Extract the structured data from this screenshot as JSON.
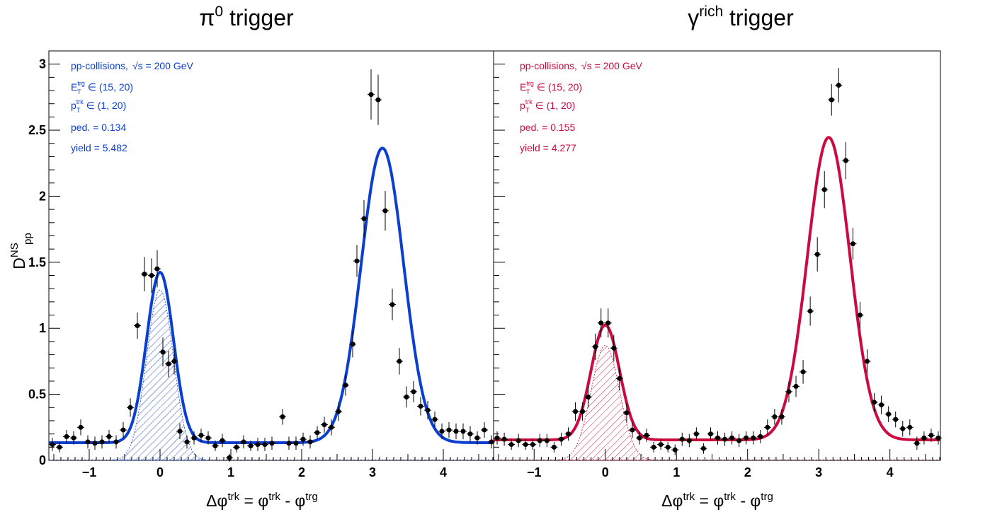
{
  "chart_data": [
    {
      "type": "scatter",
      "panel": "left",
      "title_main": "π",
      "title_sup": "0",
      "title_rest": " trigger",
      "color": "#0a3fd0",
      "xlabel_parts": [
        "Δφ",
        "trk",
        " = φ",
        "trk",
        " - φ",
        "trg"
      ],
      "ylabel_main": "D",
      "ylabel_sup": "NS",
      "ylabel_sub": "pp",
      "xlim": [
        -1.57,
        4.71
      ],
      "ylim": [
        0,
        3.1
      ],
      "xticks": [
        -1,
        0,
        1,
        2,
        3,
        4
      ],
      "xtick_labels": [
        "−1",
        "0",
        "1",
        "2",
        "3",
        "4"
      ],
      "yticks": [
        0,
        0.5,
        1,
        1.5,
        2,
        2.5,
        3
      ],
      "ytick_labels": [
        "0",
        "0.5",
        "1",
        "1.5",
        "2",
        "2.5",
        "3"
      ],
      "show_ytick_labels": true,
      "annotations": {
        "collisions": "pp-collisions,",
        "sqrt_s": "√s",
        "energy": " = 200 GeV",
        "et_symbol": "E",
        "et_sup": "trg",
        "et_sub": "T",
        "et_range": " ∈ (15, 20)",
        "pt_symbol": "p",
        "pt_sup": "trk",
        "pt_sub": "T",
        "pt_range": " ∈ (1, 20)",
        "pedestal": "ped. = 0.134",
        "yield": "yield = 5.482"
      },
      "fit": {
        "pedestal": 0.134,
        "near_amplitude": 1.29,
        "near_mean": 0.0,
        "near_sigma": 0.19,
        "away_amplitude": 2.23,
        "away_mean": 3.14,
        "away_sigma": 0.3
      },
      "series": [
        {
          "style": "points",
          "x": [
            -1.52,
            -1.42,
            -1.32,
            -1.22,
            -1.12,
            -1.02,
            -0.92,
            -0.82,
            -0.72,
            -0.62,
            -0.52,
            -0.42,
            -0.32,
            -0.22,
            -0.12,
            -0.04,
            0.04,
            0.12,
            0.2,
            0.28,
            0.38,
            0.48,
            0.58,
            0.68,
            0.78,
            0.88,
            0.98,
            1.08,
            1.18,
            1.28,
            1.38,
            1.48,
            1.58,
            1.73,
            1.82,
            1.92,
            2.02,
            2.12,
            2.22,
            2.32,
            2.42,
            2.52,
            2.62,
            2.72,
            2.78,
            2.88,
            2.98,
            3.08,
            3.18,
            3.28,
            3.38,
            3.48,
            3.58,
            3.68,
            3.78,
            3.88,
            3.98,
            4.08,
            4.18,
            4.28,
            4.38,
            4.48,
            4.58,
            4.68
          ],
          "y": [
            0.12,
            0.1,
            0.18,
            0.17,
            0.25,
            0.14,
            0.13,
            0.14,
            0.18,
            0.14,
            0.23,
            0.4,
            1.02,
            1.41,
            1.4,
            1.45,
            0.82,
            0.73,
            0.75,
            0.22,
            0.14,
            0.17,
            0.19,
            0.17,
            0.11,
            0.15,
            0.02,
            0.1,
            0.14,
            0.11,
            0.12,
            0.12,
            0.13,
            0.33,
            0.13,
            0.13,
            0.16,
            0.14,
            0.21,
            0.27,
            0.25,
            0.37,
            0.57,
            0.88,
            1.51,
            1.83,
            2.77,
            2.73,
            1.89,
            1.18,
            0.75,
            0.48,
            0.52,
            0.41,
            0.38,
            0.31,
            0.22,
            0.23,
            0.22,
            0.22,
            0.2,
            0.17,
            0.23,
            0.14
          ],
          "yerr": [
            0.05,
            0.04,
            0.05,
            0.05,
            0.06,
            0.05,
            0.05,
            0.05,
            0.05,
            0.05,
            0.06,
            0.07,
            0.1,
            0.13,
            0.13,
            0.14,
            0.11,
            0.1,
            0.1,
            0.06,
            0.05,
            0.05,
            0.05,
            0.05,
            0.04,
            0.05,
            0.03,
            0.04,
            0.05,
            0.04,
            0.05,
            0.05,
            0.05,
            0.06,
            0.05,
            0.05,
            0.05,
            0.05,
            0.05,
            0.06,
            0.06,
            0.07,
            0.08,
            0.1,
            0.12,
            0.14,
            0.19,
            0.19,
            0.15,
            0.12,
            0.1,
            0.08,
            0.08,
            0.07,
            0.07,
            0.06,
            0.06,
            0.06,
            0.06,
            0.06,
            0.06,
            0.05,
            0.06,
            0.05
          ]
        }
      ]
    },
    {
      "type": "scatter",
      "panel": "right",
      "title_main": "γ",
      "title_sup": "rich",
      "title_rest": " trigger",
      "color": "#cc0a3f",
      "xlabel_parts": [
        "Δφ",
        "trk",
        " = φ",
        "trk",
        " - φ",
        "trg"
      ],
      "xlim": [
        -1.57,
        4.71
      ],
      "ylim": [
        0,
        3.1
      ],
      "xticks": [
        -1,
        0,
        1,
        2,
        3,
        4
      ],
      "xtick_labels": [
        "−1",
        "0",
        "1",
        "2",
        "3",
        "4"
      ],
      "yticks": [
        0,
        0.5,
        1,
        1.5,
        2,
        2.5,
        3
      ],
      "show_ytick_labels": false,
      "annotations": {
        "collisions": "pp-collisions,",
        "sqrt_s": "√s",
        "energy": " = 200 GeV",
        "et_symbol": "E",
        "et_sup": "trg",
        "et_sub": "T",
        "et_range": " ∈ (15, 20)",
        "pt_symbol": "p",
        "pt_sup": "trk",
        "pt_sub": "T",
        "pt_range": " ∈ (1, 20)",
        "pedestal": "ped. = 0.155",
        "yield": "yield = 4.277"
      },
      "fit": {
        "pedestal": 0.155,
        "near_amplitude": 0.87,
        "near_mean": 0.0,
        "near_sigma": 0.2,
        "away_amplitude": 2.29,
        "away_mean": 3.14,
        "away_sigma": 0.3
      },
      "series": [
        {
          "style": "points",
          "x": [
            -1.52,
            -1.42,
            -1.32,
            -1.22,
            -1.12,
            -1.02,
            -0.92,
            -0.82,
            -0.72,
            -0.62,
            -0.52,
            -0.42,
            -0.32,
            -0.24,
            -0.14,
            -0.06,
            0.04,
            0.12,
            0.2,
            0.3,
            0.38,
            0.48,
            0.58,
            0.68,
            0.78,
            0.88,
            0.98,
            1.08,
            1.18,
            1.28,
            1.38,
            1.48,
            1.58,
            1.68,
            1.78,
            1.88,
            1.98,
            2.08,
            2.18,
            2.28,
            2.38,
            2.48,
            2.58,
            2.68,
            2.78,
            2.88,
            2.98,
            3.08,
            3.18,
            3.28,
            3.38,
            3.48,
            3.58,
            3.68,
            3.78,
            3.88,
            3.98,
            4.08,
            4.18,
            4.28,
            4.38,
            4.48,
            4.58,
            4.68
          ],
          "y": [
            0.17,
            0.16,
            0.12,
            0.15,
            0.12,
            0.12,
            0.15,
            0.15,
            0.1,
            0.16,
            0.2,
            0.37,
            0.37,
            0.48,
            0.86,
            1.04,
            1.04,
            0.85,
            0.62,
            0.36,
            0.23,
            0.17,
            0.19,
            0.1,
            0.12,
            0.1,
            0.08,
            0.16,
            0.15,
            0.2,
            0.09,
            0.2,
            0.17,
            0.16,
            0.17,
            0.15,
            0.17,
            0.17,
            0.18,
            0.25,
            0.33,
            0.33,
            0.52,
            0.56,
            0.67,
            1.13,
            1.56,
            2.05,
            2.73,
            2.84,
            2.27,
            1.64,
            1.1,
            0.75,
            0.44,
            0.42,
            0.35,
            0.31,
            0.24,
            0.25,
            0.13,
            0.17,
            0.19,
            0.17
          ],
          "yerr": [
            0.05,
            0.05,
            0.04,
            0.05,
            0.04,
            0.04,
            0.05,
            0.05,
            0.04,
            0.05,
            0.05,
            0.07,
            0.07,
            0.08,
            0.1,
            0.11,
            0.11,
            0.1,
            0.09,
            0.07,
            0.06,
            0.05,
            0.05,
            0.04,
            0.04,
            0.04,
            0.04,
            0.05,
            0.05,
            0.05,
            0.04,
            0.05,
            0.05,
            0.05,
            0.05,
            0.05,
            0.05,
            0.05,
            0.05,
            0.06,
            0.06,
            0.06,
            0.08,
            0.08,
            0.09,
            0.11,
            0.13,
            0.14,
            0.12,
            0.13,
            0.14,
            0.12,
            0.1,
            0.09,
            0.07,
            0.07,
            0.06,
            0.06,
            0.06,
            0.06,
            0.05,
            0.05,
            0.05,
            0.05
          ]
        }
      ]
    }
  ]
}
